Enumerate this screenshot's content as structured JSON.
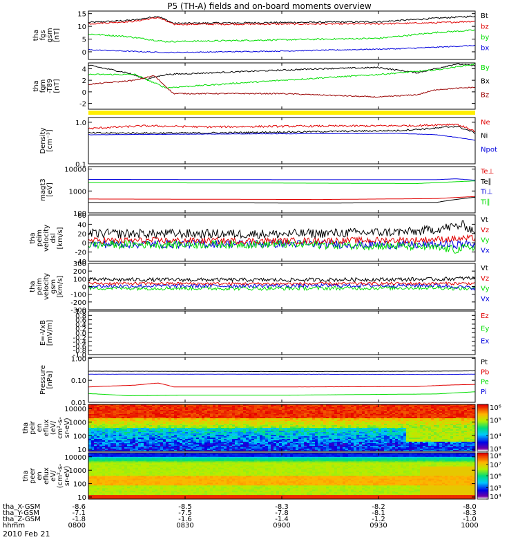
{
  "title": "P5 (TH-A) fields and on-board moments overview",
  "date_label": "2010 Feb 21",
  "colorbar_top_ticks": [
    "10⁶",
    "10⁵",
    "10⁴",
    "10³"
  ],
  "colorbar_bottom_ticks": [
    "10⁸",
    "10⁷",
    "10⁶",
    "10⁵",
    "10⁴"
  ],
  "colors": {
    "black": "#000000",
    "red": "#e00000",
    "green": "#00dd00",
    "blue": "#0000dd",
    "darkred": "#990000",
    "yellow": "#ffee00"
  },
  "ephemeris": {
    "rows": [
      {
        "label": "tha_X-GSM",
        "values": [
          "-8.6",
          "-8.5",
          "-8.3",
          "-8.2",
          "-8.0"
        ]
      },
      {
        "label": "tha_Y-GSM",
        "values": [
          "-7.1",
          "-7.5",
          "-7.8",
          "-8.1",
          "-8.3"
        ]
      },
      {
        "label": "tha_Z-GSM",
        "values": [
          "-1.8",
          "-1.6",
          "-1.4",
          "-1.2",
          "-1.0"
        ]
      },
      {
        "label": "hhmm",
        "values": [
          "0800",
          "0830",
          "0900",
          "0930",
          "1000"
        ]
      }
    ]
  },
  "chart_data": [
    {
      "type": "line",
      "id": "fgs",
      "ylabel": [
        "tha",
        "fgs",
        "gsm",
        "[nT]"
      ],
      "ylim": [
        -3,
        16
      ],
      "yticks": [
        15,
        10,
        5,
        0
      ],
      "legend": [
        "Bt",
        "bz",
        "by",
        "bx"
      ],
      "series": [
        {
          "name": "Bt",
          "color": "black",
          "noise": 0.3,
          "points": [
            [
              0,
              11.5
            ],
            [
              0.12,
              12.5
            ],
            [
              0.18,
              14
            ],
            [
              0.22,
              11.2
            ],
            [
              0.5,
              11.5
            ],
            [
              0.75,
              11.8
            ],
            [
              0.9,
              13.2
            ],
            [
              1,
              14
            ]
          ]
        },
        {
          "name": "bz",
          "color": "red",
          "noise": 0.3,
          "points": [
            [
              0,
              11
            ],
            [
              0.12,
              12
            ],
            [
              0.18,
              13.5
            ],
            [
              0.22,
              10.8
            ],
            [
              0.5,
              10.9
            ],
            [
              0.75,
              11
            ],
            [
              0.9,
              11.4
            ],
            [
              1,
              12
            ]
          ]
        },
        {
          "name": "by",
          "color": "green",
          "noise": 0.3,
          "points": [
            [
              0,
              7
            ],
            [
              0.1,
              6
            ],
            [
              0.2,
              4
            ],
            [
              0.5,
              4.7
            ],
            [
              0.75,
              5.3
            ],
            [
              0.9,
              7.6
            ],
            [
              1,
              8.5
            ]
          ]
        },
        {
          "name": "bx",
          "color": "blue",
          "noise": 0.2,
          "points": [
            [
              0,
              0.8
            ],
            [
              0.2,
              -0.3
            ],
            [
              0.5,
              0.3
            ],
            [
              0.8,
              1.2
            ],
            [
              0.9,
              1.8
            ],
            [
              1,
              2.5
            ]
          ]
        }
      ]
    },
    {
      "type": "line",
      "id": "fgm",
      "ylabel": [
        "tha",
        "fgm",
        "-T89",
        "[nT]"
      ],
      "ylim": [
        -3,
        5
      ],
      "yticks": [
        4,
        2,
        0,
        -2
      ],
      "legend": [
        "By",
        "Bx",
        "Bz"
      ],
      "series": [
        {
          "name": "Bx",
          "color": "black",
          "noise": 0.12,
          "points": [
            [
              0,
              4.6
            ],
            [
              0.1,
              3.3
            ],
            [
              0.15,
              2.2
            ],
            [
              0.2,
              3
            ],
            [
              0.4,
              3.5
            ],
            [
              0.6,
              4
            ],
            [
              0.75,
              4.2
            ],
            [
              0.85,
              3.3
            ],
            [
              0.95,
              4.8
            ],
            [
              1,
              4.5
            ]
          ]
        },
        {
          "name": "By",
          "color": "green",
          "noise": 0.12,
          "points": [
            [
              0,
              3
            ],
            [
              0.12,
              3
            ],
            [
              0.2,
              0.7
            ],
            [
              0.5,
              2
            ],
            [
              0.75,
              3
            ],
            [
              0.9,
              3.8
            ],
            [
              1,
              4.8
            ]
          ]
        },
        {
          "name": "Bz",
          "color": "darkred",
          "noise": 0.1,
          "points": [
            [
              0,
              1.3
            ],
            [
              0.12,
              2
            ],
            [
              0.17,
              2.8
            ],
            [
              0.22,
              -0.3
            ],
            [
              0.5,
              -0.3
            ],
            [
              0.75,
              -0.9
            ],
            [
              0.85,
              -0.5
            ],
            [
              0.9,
              0.4
            ],
            [
              1,
              0.8
            ]
          ]
        }
      ]
    },
    {
      "type": "line",
      "id": "density",
      "log": true,
      "ylabel": [
        "Density",
        "[cm⁻³]"
      ],
      "ylim": [
        0.1,
        1.3
      ],
      "yticks": [
        1,
        0.1
      ],
      "yticklabels": [
        "1.0",
        "0.1"
      ],
      "legend": [
        "Ne",
        "Ni",
        "Npot"
      ],
      "series": [
        {
          "name": "Ne",
          "color": "red",
          "noise": 0.06,
          "points": [
            [
              0,
              0.7
            ],
            [
              0.05,
              0.75
            ],
            [
              0.15,
              0.82
            ],
            [
              0.3,
              0.77
            ],
            [
              0.5,
              0.8
            ],
            [
              0.75,
              0.82
            ],
            [
              0.85,
              0.83
            ],
            [
              0.95,
              0.9
            ],
            [
              1,
              0.6
            ]
          ]
        },
        {
          "name": "Ni",
          "color": "black",
          "noise": 0.05,
          "points": [
            [
              0,
              0.55
            ],
            [
              0.3,
              0.55
            ],
            [
              0.5,
              0.58
            ],
            [
              0.8,
              0.63
            ],
            [
              0.9,
              0.72
            ],
            [
              0.95,
              0.8
            ],
            [
              1,
              0.55
            ]
          ]
        },
        {
          "name": "Npot",
          "color": "blue",
          "noise": 0.01,
          "points": [
            [
              0,
              0.5
            ],
            [
              0.3,
              0.52
            ],
            [
              0.8,
              0.54
            ],
            [
              0.9,
              0.5
            ],
            [
              1,
              0.37
            ]
          ]
        }
      ]
    },
    {
      "type": "line",
      "id": "temp",
      "log": true,
      "ylabel": [
        "magt3",
        "[eV]"
      ],
      "ylim": [
        100,
        13000
      ],
      "yticks": [
        10000,
        1000,
        100
      ],
      "yticklabels": [
        "10000",
        "1000",
        "100"
      ],
      "legend": [
        "Te⊥",
        "Te∥",
        "Ti⊥",
        "Ti∥"
      ],
      "series": [
        {
          "name": "Ti⊥",
          "color": "blue",
          "noise": 0.02,
          "points": [
            [
              0,
              3400
            ],
            [
              0.5,
              3300
            ],
            [
              0.9,
              3300
            ],
            [
              0.95,
              3600
            ],
            [
              1,
              3100
            ]
          ]
        },
        {
          "name": "Ti∥",
          "color": "green",
          "noise": 0.03,
          "points": [
            [
              0,
              2400
            ],
            [
              0.5,
              2300
            ],
            [
              0.85,
              2200
            ],
            [
              0.92,
              2500
            ],
            [
              1,
              2900
            ]
          ]
        },
        {
          "name": "Te⊥",
          "color": "red",
          "noise": 0.02,
          "points": [
            [
              0,
              430
            ],
            [
              0.3,
              420
            ],
            [
              0.6,
              410
            ],
            [
              0.9,
              450
            ],
            [
              1,
              560
            ]
          ]
        },
        {
          "name": "Te∥",
          "color": "black",
          "noise": 0.02,
          "points": [
            [
              0,
              300
            ],
            [
              0.3,
              290
            ],
            [
              0.6,
              280
            ],
            [
              0.9,
              300
            ],
            [
              1,
              520
            ]
          ]
        }
      ]
    },
    {
      "type": "line",
      "id": "vdsl",
      "ylabel": [
        "tha",
        "peim",
        "velocity",
        "dsl",
        "[km/s]"
      ],
      "ylim": [
        -40,
        60
      ],
      "yticks": [
        60,
        40,
        20,
        0,
        -20,
        -40
      ],
      "legend": [
        "Vt",
        "Vz",
        "Vy",
        "Vx"
      ],
      "series": [
        {
          "name": "Vx",
          "color": "blue",
          "noise": 9,
          "points": [
            [
              0,
              -3
            ],
            [
              0.5,
              -2
            ],
            [
              0.85,
              -5
            ],
            [
              1,
              -3
            ]
          ]
        },
        {
          "name": "Vy",
          "color": "green",
          "noise": 9,
          "points": [
            [
              0,
              -4
            ],
            [
              0.5,
              -3
            ],
            [
              0.85,
              -8
            ],
            [
              0.95,
              -15
            ],
            [
              1,
              -8
            ]
          ]
        },
        {
          "name": "Vz",
          "color": "red",
          "noise": 7,
          "points": [
            [
              0,
              5
            ],
            [
              0.5,
              4
            ],
            [
              0.85,
              6
            ],
            [
              1,
              10
            ]
          ]
        },
        {
          "name": "Vt",
          "color": "black",
          "noise": 10,
          "points": [
            [
              0,
              20
            ],
            [
              0.5,
              19
            ],
            [
              0.85,
              24
            ],
            [
              0.97,
              38
            ],
            [
              1,
              25
            ]
          ]
        }
      ]
    },
    {
      "type": "line",
      "id": "vgsm",
      "ylabel": [
        "tha",
        "peim",
        "velocity",
        "gsm",
        "[km/s]"
      ],
      "ylim": [
        -300,
        300
      ],
      "yticks": [
        300,
        200,
        100,
        0,
        -100,
        -200,
        -300
      ],
      "legend": [
        "Vt",
        "Vz",
        "Vy",
        "Vx"
      ],
      "series": [
        {
          "name": "Vy",
          "color": "green",
          "noise": 25,
          "points": [
            [
              0,
              -20
            ],
            [
              0.5,
              -25
            ],
            [
              0.9,
              -15
            ],
            [
              1,
              -30
            ]
          ]
        },
        {
          "name": "Vx",
          "color": "blue",
          "noise": 25,
          "points": [
            [
              0,
              5
            ],
            [
              0.5,
              10
            ],
            [
              0.9,
              15
            ],
            [
              1,
              -20
            ]
          ]
        },
        {
          "name": "Vz",
          "color": "red",
          "noise": 20,
          "points": [
            [
              0,
              40
            ],
            [
              0.5,
              35
            ],
            [
              1,
              40
            ]
          ]
        },
        {
          "name": "Vt",
          "color": "black",
          "noise": 25,
          "points": [
            [
              0,
              90
            ],
            [
              0.5,
              85
            ],
            [
              0.9,
              95
            ],
            [
              1,
              110
            ]
          ]
        }
      ]
    },
    {
      "type": "line",
      "id": "efield",
      "ylabel": [
        "E=-VxB",
        "[mV/m]"
      ],
      "ylim": [
        -1,
        1
      ],
      "yticks": [
        1,
        0.8,
        0.6,
        0.4,
        0.2,
        0,
        -0.2,
        -0.4,
        -0.6,
        -0.8,
        -1
      ],
      "yticklabels": [
        "1.0",
        "0.8",
        "0.6",
        "0.4",
        "0.2",
        "0.0",
        "-0.2",
        "-0.4",
        "-0.6",
        "-0.8",
        "-1.0"
      ],
      "legend": [
        "Ez",
        "Ey",
        "Ex"
      ],
      "series": []
    },
    {
      "type": "line",
      "id": "pressure",
      "log": true,
      "ylabel": [
        "Pressure",
        "[nPa]"
      ],
      "ylim": [
        0.01,
        1.1
      ],
      "yticks": [
        1,
        0.1,
        0.01
      ],
      "yticklabels": [
        "1.00",
        "0.10",
        "0.01"
      ],
      "legend": [
        "Pt",
        "Pb",
        "Pe",
        "Pi"
      ],
      "series": [
        {
          "name": "Pt",
          "color": "black",
          "noise": 0.01,
          "points": [
            [
              0,
              0.26
            ],
            [
              0.5,
              0.25
            ],
            [
              0.9,
              0.26
            ],
            [
              1,
              0.27
            ]
          ]
        },
        {
          "name": "Pi",
          "color": "blue",
          "noise": 0.01,
          "points": [
            [
              0,
              0.19
            ],
            [
              0.5,
              0.19
            ],
            [
              0.9,
              0.185
            ],
            [
              1,
              0.19
            ]
          ]
        },
        {
          "name": "Pb",
          "color": "red",
          "noise": 0.005,
          "points": [
            [
              0,
              0.05
            ],
            [
              0.12,
              0.06
            ],
            [
              0.18,
              0.075
            ],
            [
              0.22,
              0.05
            ],
            [
              0.5,
              0.05
            ],
            [
              0.85,
              0.052
            ],
            [
              0.92,
              0.06
            ],
            [
              1,
              0.065
            ]
          ]
        },
        {
          "name": "Pe",
          "color": "green",
          "noise": 0.003,
          "points": [
            [
              0,
              0.025
            ],
            [
              0.1,
              0.02
            ],
            [
              0.25,
              0.021
            ],
            [
              0.5,
              0.021
            ],
            [
              0.9,
              0.024
            ],
            [
              1,
              0.03
            ]
          ]
        }
      ]
    },
    {
      "type": "heatmap",
      "id": "peir",
      "ylabel": [
        "tha",
        "peir",
        "en",
        "eflux",
        "(eV/",
        "cm²-s-",
        "sr-eV)"
      ],
      "log": true,
      "ylim": [
        7,
        20000
      ],
      "yticks": [
        10000,
        1000,
        100,
        10
      ],
      "yticklabels": [
        "10000",
        "1000",
        "100",
        "10"
      ],
      "colorbar": {
        "min": 1000,
        "max": 1000000,
        "ticks": [
          1000000,
          100000,
          10000,
          1000
        ]
      }
    },
    {
      "type": "heatmap",
      "id": "peer",
      "ylabel": [
        "tha",
        "peer",
        "en",
        "eflux",
        "eV/",
        "(cm²-s-",
        "sr-eV)"
      ],
      "log": true,
      "ylim": [
        7,
        20000
      ],
      "yticks": [
        10000,
        1000,
        100,
        10
      ],
      "yticklabels": [
        "10000",
        "1000",
        "100",
        "10"
      ],
      "colorbar": {
        "min": 10000,
        "max": 100000000,
        "ticks": [
          100000000,
          10000000,
          1000000,
          100000,
          10000
        ]
      }
    }
  ]
}
